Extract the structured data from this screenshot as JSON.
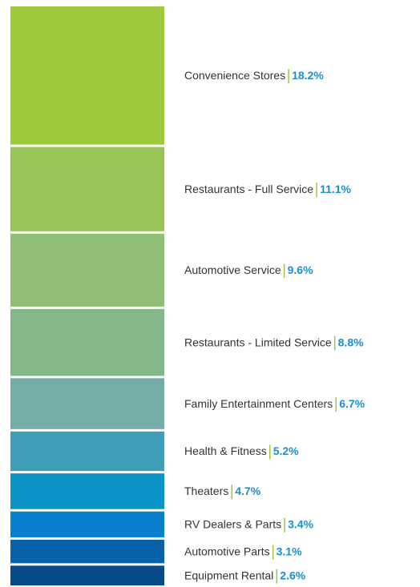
{
  "chart_data": {
    "type": "stacked-bar",
    "categories": [
      "Convenience Stores",
      "Restaurants - Full Service",
      "Automotive Service",
      "Restaurants - Limited Service",
      "Family Entertainment Centers",
      "Health & Fitness",
      "Theaters",
      "RV Dealers & Parts",
      "Automotive Parts",
      "Equipment Rental"
    ],
    "values": [
      18.2,
      11.1,
      9.6,
      8.8,
      6.7,
      5.2,
      4.7,
      3.4,
      3.1,
      2.6
    ],
    "value_labels": [
      "18.2%",
      "11.1%",
      "9.6%",
      "8.8%",
      "6.7%",
      "5.2%",
      "4.7%",
      "3.4%",
      "3.1%",
      "2.6%"
    ],
    "colors": [
      "#9dc93b",
      "#98c45a",
      "#8fbe76",
      "#84b888",
      "#74ada8",
      "#3f9db8",
      "#0a93c6",
      "#0a7fcd",
      "#0962a9",
      "#064a8a"
    ]
  }
}
